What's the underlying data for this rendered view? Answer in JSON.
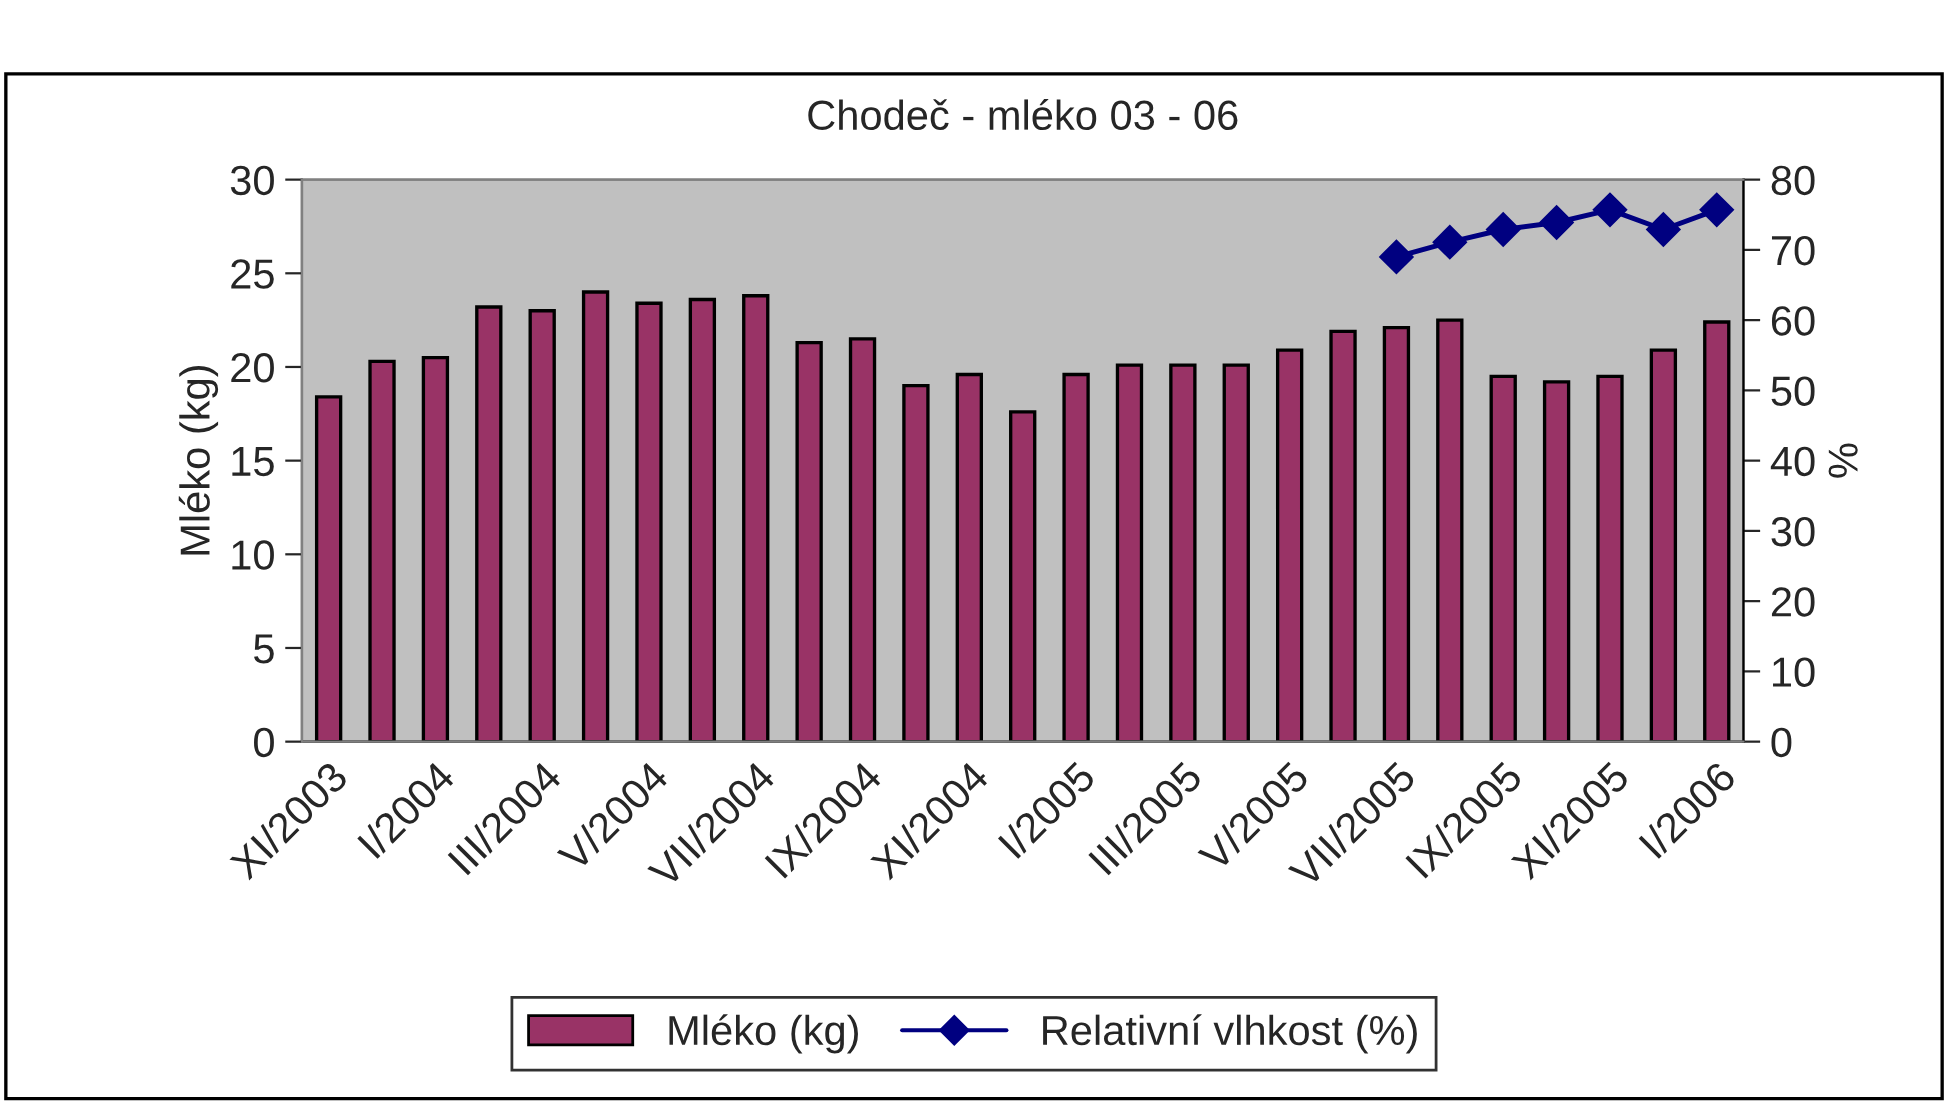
{
  "chart_data": {
    "type": "bar",
    "title": "Chodeč - mléko 03 - 06",
    "categories": [
      "XI/2003",
      null,
      "I/2004",
      null,
      "III/2004",
      null,
      "V/2004",
      null,
      "VII/2004",
      null,
      "IX/2004",
      null,
      "XI/2004",
      null,
      "I/2005",
      null,
      "III/2005",
      null,
      "V/2005",
      null,
      "VII/2005",
      null,
      "IX/2005",
      null,
      "XI/2005",
      null,
      "I/2006"
    ],
    "series": [
      {
        "name": "Mléko (kg)",
        "color": "#993366",
        "values": [
          18.4,
          20.3,
          20.5,
          23.2,
          23.0,
          24.0,
          23.4,
          23.6,
          23.8,
          21.3,
          21.5,
          19.0,
          19.6,
          17.6,
          19.6,
          20.1,
          20.1,
          20.1,
          20.9,
          21.9,
          22.1,
          22.5,
          19.5,
          19.2,
          19.5,
          20.9,
          22.4
        ]
      },
      {
        "name": "Relativní vlhkost (%)",
        "type": "line",
        "axis": "y2",
        "color": "#000080",
        "marker": "diamond",
        "values": [
          null,
          null,
          null,
          null,
          null,
          null,
          null,
          null,
          null,
          null,
          null,
          null,
          null,
          null,
          null,
          null,
          null,
          null,
          null,
          null,
          69.0,
          71.1,
          72.9,
          73.9,
          75.7,
          72.9,
          75.7
        ]
      }
    ],
    "ylabel": "Mléko (kg)",
    "y2label": "%",
    "ylim": [
      0,
      30
    ],
    "yticks": [
      0,
      5,
      10,
      15,
      20,
      25,
      30
    ],
    "y2lim": [
      0,
      80
    ],
    "y2ticks": [
      0,
      10,
      20,
      30,
      40,
      50,
      60,
      70,
      80
    ],
    "grid": false,
    "legend": "bottom"
  }
}
